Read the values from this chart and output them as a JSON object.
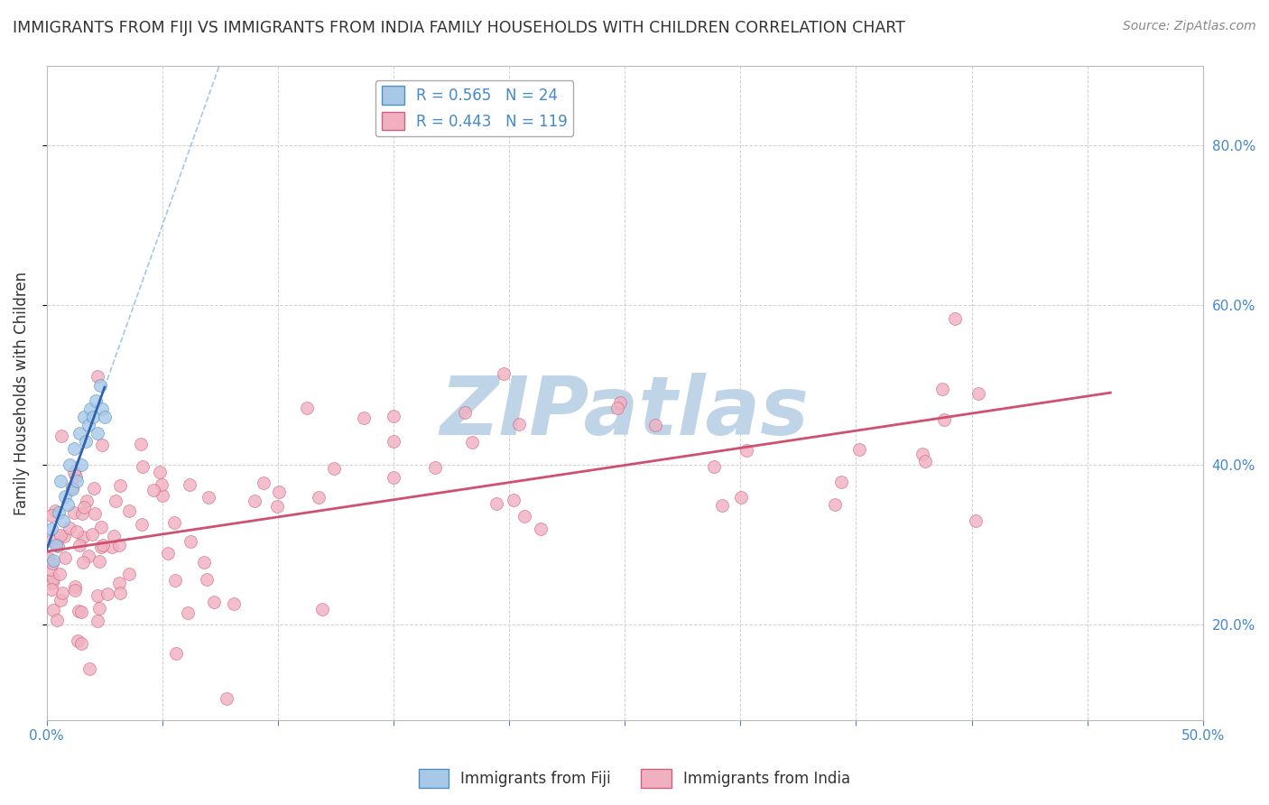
{
  "title": "IMMIGRANTS FROM FIJI VS IMMIGRANTS FROM INDIA FAMILY HOUSEHOLDS WITH CHILDREN CORRELATION CHART",
  "source": "Source: ZipAtlas.com",
  "ylabel": "Family Households with Children",
  "xlim": [
    0.0,
    0.5
  ],
  "ylim": [
    0.08,
    0.9
  ],
  "fiji_color": "#a8c8e8",
  "fiji_edge_color": "#5090c0",
  "india_color": "#f0b0c0",
  "india_edge_color": "#d06080",
  "fiji_line_color": "#3060b0",
  "fiji_dash_color": "#90b8e0",
  "india_line_color": "#d05070",
  "fiji_R": 0.565,
  "fiji_N": 24,
  "india_R": 0.443,
  "india_N": 119,
  "background_color": "#ffffff",
  "grid_color": "#cccccc",
  "title_fontsize": 12.5,
  "axis_label_fontsize": 12,
  "tick_fontsize": 11,
  "legend_fontsize": 12,
  "source_fontsize": 10,
  "marker_size": 10,
  "watermark_text": "ZIPatlas",
  "watermark_color": "#c0d4e8",
  "watermark_fontsize": 65,
  "tick_color": "#4488cc",
  "text_color": "#333333"
}
